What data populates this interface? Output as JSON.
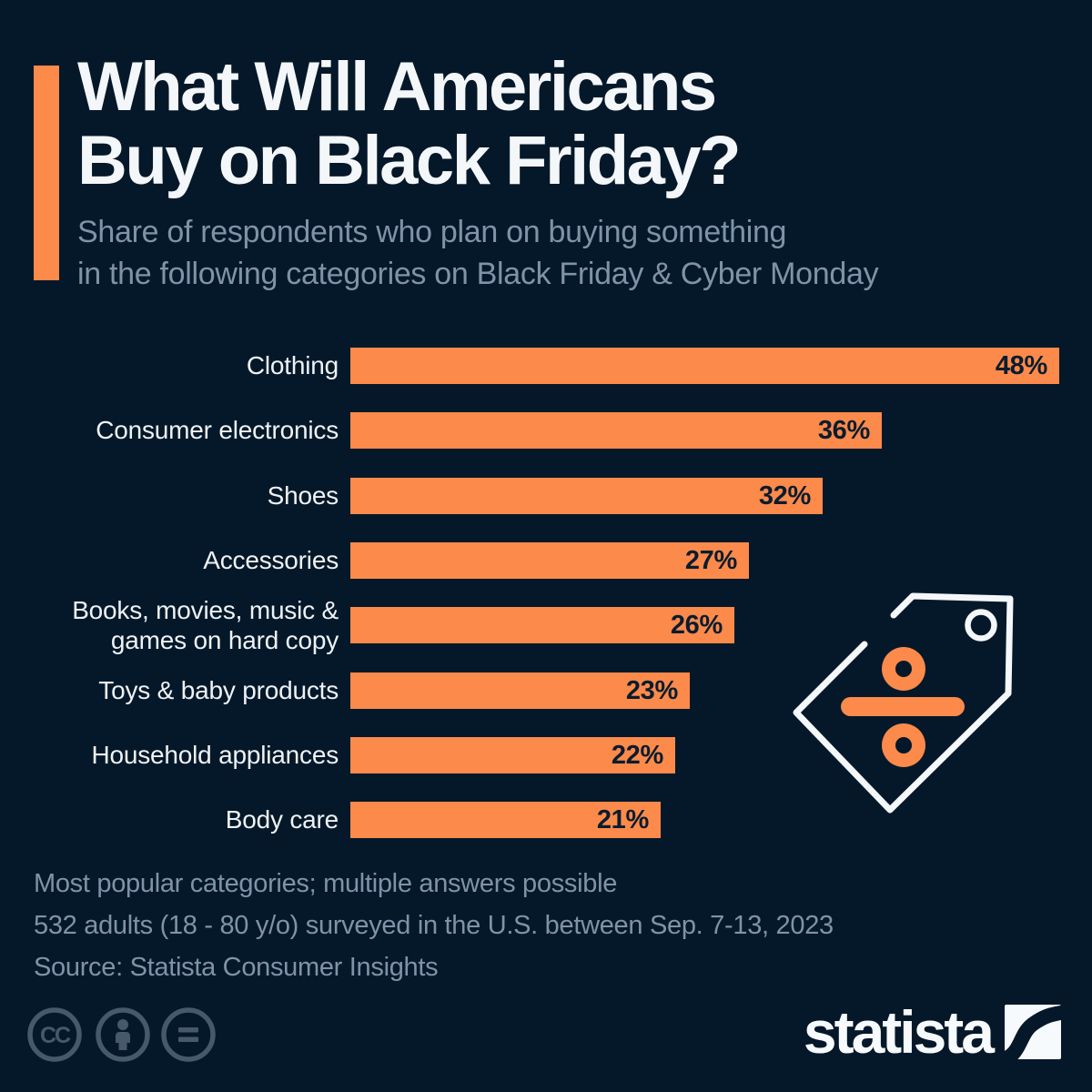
{
  "header": {
    "title": "What Will Americans\nBuy on Black Friday?",
    "subtitle": "Share of respondents who plan on buying something\nin the following categories on Black Friday & Cyber Monday"
  },
  "chart_data": {
    "type": "bar",
    "orientation": "horizontal",
    "unit": "%",
    "title": "What Will Americans Buy on Black Friday?",
    "categories": [
      "Clothing",
      "Consumer electronics",
      "Shoes",
      "Accessories",
      "Books, movies, music &\ngames on hard copy",
      "Toys & baby products",
      "Household appliances",
      "Body care"
    ],
    "values": [
      48,
      36,
      32,
      27,
      26,
      23,
      22,
      21
    ],
    "value_labels": [
      "48%",
      "36%",
      "32%",
      "27%",
      "26%",
      "23%",
      "22%",
      "21%"
    ],
    "xlim": [
      0,
      48
    ],
    "grid": false,
    "legend": false,
    "bar_color": "#fb8a4b",
    "value_label_position": "inside-end"
  },
  "footer": {
    "note1": "Most popular categories; multiple answers possible",
    "note2": "532 adults (18 - 80 y/o) surveyed in the U.S. between Sep. 7-13, 2023",
    "source": "Source: Statista Consumer Insights"
  },
  "branding": {
    "wordmark": "statista",
    "cc_label": "CC",
    "license_icons": [
      "creative-commons",
      "attribution",
      "no-derivatives"
    ]
  },
  "colors": {
    "background": "#051829",
    "accent_orange": "#fb8a4b",
    "title_text": "#f4f7f9",
    "muted_text": "#7d93a8",
    "bar_value_text": "#0b1c2e",
    "icon_slate": "#46586b",
    "tag_outline": "#f5f8fa"
  }
}
